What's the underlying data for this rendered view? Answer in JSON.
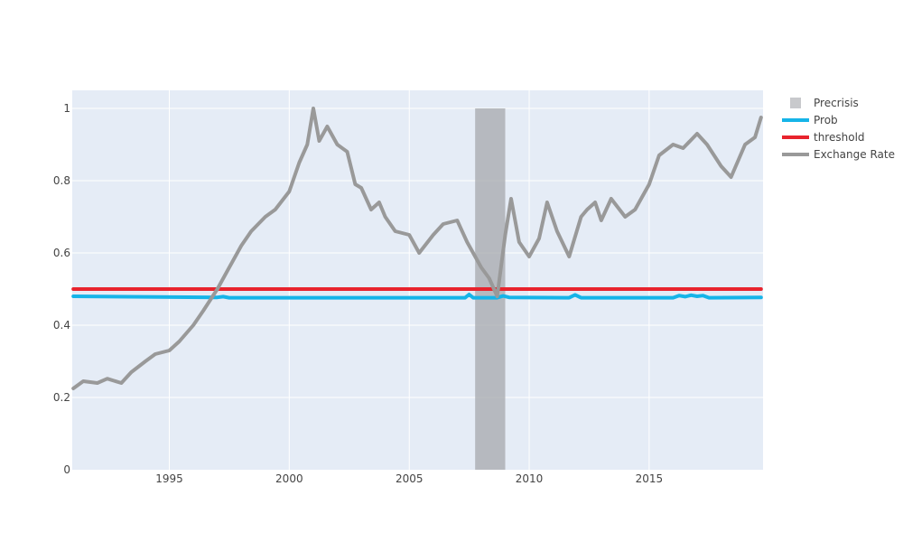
{
  "chart_data": {
    "type": "line",
    "x_type": "date",
    "xlim": [
      "1990-12-15",
      "2019-10-01"
    ],
    "ylim": [
      0,
      1.05
    ],
    "grid": true,
    "legend_position": "top-right",
    "x_ticks": [
      "1995",
      "2000",
      "2005",
      "2010",
      "2015"
    ],
    "y_ticks": [
      "0",
      "0.2",
      "0.4",
      "0.6",
      "0.8",
      "1"
    ],
    "shaded_regions": [
      {
        "name": "Precrisis",
        "x_start": "2007-10-01",
        "x_end": "2009-01-01",
        "y_start": 0,
        "y_end": 1,
        "color": "#a6a8ac"
      }
    ],
    "series": [
      {
        "name": "Prob",
        "color": "#16b4e8",
        "points": [
          [
            "1991-01-01",
            0.48
          ],
          [
            "1997-01-01",
            0.477
          ],
          [
            "1997-04-01",
            0.479
          ],
          [
            "1997-07-01",
            0.476
          ],
          [
            "2007-05-01",
            0.476
          ],
          [
            "2007-07-01",
            0.485
          ],
          [
            "2007-09-01",
            0.476
          ],
          [
            "2008-09-01",
            0.476
          ],
          [
            "2008-12-01",
            0.481
          ],
          [
            "2009-03-01",
            0.477
          ],
          [
            "2011-09-01",
            0.476
          ],
          [
            "2011-12-01",
            0.484
          ],
          [
            "2012-03-01",
            0.476
          ],
          [
            "2016-01-01",
            0.476
          ],
          [
            "2016-04-01",
            0.482
          ],
          [
            "2016-07-01",
            0.479
          ],
          [
            "2016-10-01",
            0.483
          ],
          [
            "2017-01-01",
            0.48
          ],
          [
            "2017-04-01",
            0.482
          ],
          [
            "2017-07-01",
            0.476
          ],
          [
            "2019-09-01",
            0.477
          ]
        ]
      },
      {
        "name": "threshold",
        "color": "#e8232d",
        "points": [
          [
            "1991-01-01",
            0.5
          ],
          [
            "2019-09-01",
            0.5
          ]
        ]
      },
      {
        "name": "Exchange Rate",
        "color": "#999999",
        "points": [
          [
            "1991-01-01",
            0.225
          ],
          [
            "1991-06-01",
            0.245
          ],
          [
            "1992-01-01",
            0.24
          ],
          [
            "1992-06-01",
            0.252
          ],
          [
            "1993-01-01",
            0.24
          ],
          [
            "1993-06-01",
            0.27
          ],
          [
            "1994-01-01",
            0.3
          ],
          [
            "1994-06-01",
            0.32
          ],
          [
            "1995-01-01",
            0.33
          ],
          [
            "1995-06-01",
            0.355
          ],
          [
            "1996-01-01",
            0.4
          ],
          [
            "1996-06-01",
            0.44
          ],
          [
            "1997-01-01",
            0.5
          ],
          [
            "1997-06-01",
            0.55
          ],
          [
            "1998-01-01",
            0.62
          ],
          [
            "1998-06-01",
            0.66
          ],
          [
            "1999-01-01",
            0.7
          ],
          [
            "1999-06-01",
            0.72
          ],
          [
            "2000-01-01",
            0.77
          ],
          [
            "2000-06-01",
            0.85
          ],
          [
            "2000-10-01",
            0.9
          ],
          [
            "2001-01-01",
            1.0
          ],
          [
            "2001-04-01",
            0.91
          ],
          [
            "2001-08-01",
            0.95
          ],
          [
            "2002-01-01",
            0.9
          ],
          [
            "2002-06-01",
            0.88
          ],
          [
            "2002-10-01",
            0.79
          ],
          [
            "2003-01-01",
            0.78
          ],
          [
            "2003-06-01",
            0.72
          ],
          [
            "2003-10-01",
            0.74
          ],
          [
            "2004-01-01",
            0.7
          ],
          [
            "2004-06-01",
            0.66
          ],
          [
            "2005-01-01",
            0.65
          ],
          [
            "2005-06-01",
            0.6
          ],
          [
            "2006-01-01",
            0.65
          ],
          [
            "2006-06-01",
            0.68
          ],
          [
            "2007-01-01",
            0.69
          ],
          [
            "2007-06-01",
            0.63
          ],
          [
            "2008-01-01",
            0.56
          ],
          [
            "2008-05-01",
            0.53
          ],
          [
            "2008-09-01",
            0.48
          ],
          [
            "2009-01-01",
            0.65
          ],
          [
            "2009-04-01",
            0.75
          ],
          [
            "2009-08-01",
            0.63
          ],
          [
            "2010-01-01",
            0.59
          ],
          [
            "2010-06-01",
            0.64
          ],
          [
            "2010-10-01",
            0.74
          ],
          [
            "2011-03-01",
            0.66
          ],
          [
            "2011-09-01",
            0.59
          ],
          [
            "2012-03-01",
            0.7
          ],
          [
            "2012-06-01",
            0.72
          ],
          [
            "2012-10-01",
            0.74
          ],
          [
            "2013-01-01",
            0.69
          ],
          [
            "2013-06-01",
            0.75
          ],
          [
            "2014-01-01",
            0.7
          ],
          [
            "2014-06-01",
            0.72
          ],
          [
            "2015-01-01",
            0.79
          ],
          [
            "2015-06-01",
            0.87
          ],
          [
            "2016-01-01",
            0.9
          ],
          [
            "2016-06-01",
            0.89
          ],
          [
            "2017-01-01",
            0.93
          ],
          [
            "2017-06-01",
            0.9
          ],
          [
            "2018-01-01",
            0.84
          ],
          [
            "2018-06-01",
            0.81
          ],
          [
            "2019-01-01",
            0.9
          ],
          [
            "2019-06-01",
            0.92
          ],
          [
            "2019-09-01",
            0.975
          ]
        ]
      }
    ],
    "legend": [
      {
        "label": "Precrisis",
        "kind": "square",
        "color": "#c8c9cc"
      },
      {
        "label": "Prob",
        "kind": "line",
        "color": "#16b4e8"
      },
      {
        "label": "threshold",
        "kind": "line",
        "color": "#e8232d"
      },
      {
        "label": "Exchange Rate",
        "kind": "line",
        "color": "#999999"
      }
    ],
    "plot_background": "#e5ecf6",
    "grid_color": "#ffffff"
  }
}
